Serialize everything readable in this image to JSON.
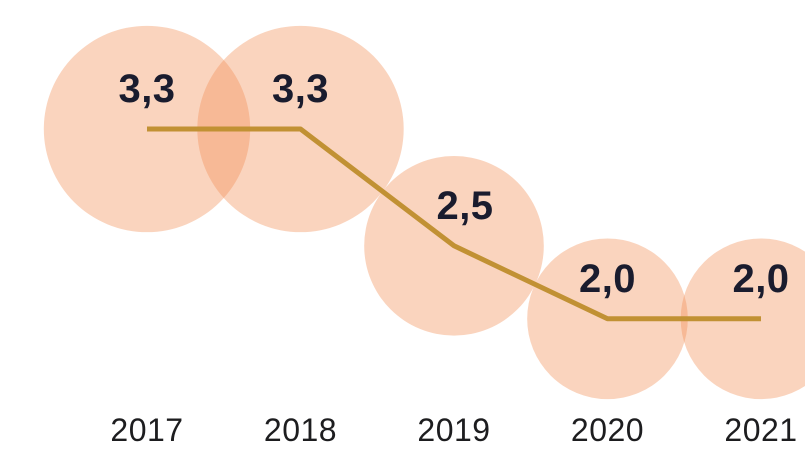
{
  "chart_data": {
    "type": "line",
    "style": "bubble-line",
    "title": "",
    "xlabel": "",
    "ylabel": "",
    "categories": [
      "2017",
      "2018",
      "2019",
      "2020",
      "2021"
    ],
    "values": [
      3.3,
      3.3,
      2.5,
      2.0,
      2.0
    ],
    "value_labels": [
      "3,3",
      "3,3",
      "2,5",
      "2,0",
      "2,0"
    ],
    "decimal_separator": ",",
    "legend_position": "none",
    "grid": false,
    "axes_visible": false,
    "bubble_area_proportional_to_value": true,
    "colors": {
      "background": "#FFFFFF",
      "bubble_fill": "#F28E54",
      "bubble_opacity": 0.38,
      "line": "#C19134",
      "value_text": "#1A1C2E",
      "year_text": "#1D1D1F"
    }
  }
}
